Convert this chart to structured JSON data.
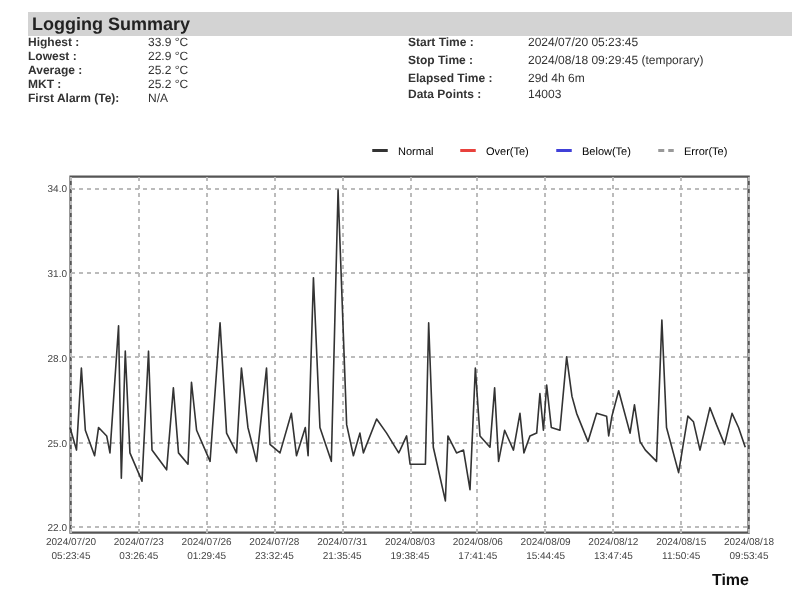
{
  "chart_data": {
    "type": "line",
    "title": "Logging Summary",
    "xlabel": "Time",
    "annotations": [
      "Highest :",
      "33.9 °C",
      "Lowest :",
      "22.9 °C",
      "Average :",
      "25.2 °C",
      "MKT :",
      "25.2 °C",
      "First Alarm (Te):",
      "N/A",
      "Start Time :",
      "2024/07/20 05:23:45",
      "Stop Time :",
      "2024/08/18 09:29:45   (temporary)",
      "Elapsed Time :",
      "29d 4h 6m",
      "Data Points :",
      "14003"
    ],
    "x": [
      "2024-07-20T05:23",
      "2024-07-20T12:06",
      "2024-07-20T17:09",
      "2024-07-20T21:13",
      "2024-07-21T06:49",
      "2024-07-21T10:54",
      "2024-07-21T19:18",
      "2024-07-21T22:40",
      "2024-07-22T07:33",
      "2024-07-22T10:25",
      "2024-07-22T14:30",
      "2024-07-22T19:18",
      "2024-07-23T07:47",
      "2024-07-23T14:30",
      "2024-07-23T18:06",
      "2024-07-24T09:13",
      "2024-07-24T16:11",
      "2024-07-24T21:28",
      "2024-07-25T07:18",
      "2024-07-25T10:54",
      "2024-07-25T16:11",
      "2024-07-26T06:06",
      "2024-07-26T16:25",
      "2024-07-26T23:09",
      "2024-07-27T09:28",
      "2024-07-27T14:30",
      "2024-07-27T21:13",
      "2024-07-28T06:06",
      "2024-07-28T16:25",
      "2024-07-28T20:01",
      "2024-07-29T06:21",
      "2024-07-29T18:06",
      "2024-07-29T23:23",
      "2024-07-30T08:30",
      "2024-07-30T11:23",
      "2024-07-30T16:54",
      "2024-07-30T23:37",
      "2024-07-31T11:23",
      "2024-07-31T18:21",
      "2024-08-01T03:13",
      "2024-08-01T10:11",
      "2024-08-01T16:54",
      "2024-08-01T20:30",
      "2024-08-02T10:11",
      "2024-08-02T20:30",
      "2024-08-03T08:59",
      "2024-08-03T10:25",
      "2024-08-03T17:09",
      "2024-08-03T20:45",
      "2024-08-04T12:35",
      "2024-08-04T15:57",
      "2024-08-04T20:45",
      "2024-08-05T09:13",
      "2024-08-05T11:52",
      "2024-08-05T20:45",
      "2024-08-06T03:57",
      "2024-08-06T10:40",
      "2024-08-06T16:11",
      "2024-08-06T20:59",
      "2024-08-07T07:18",
      "2024-08-07T12:06",
      "2024-08-07T16:11",
      "2024-08-07T22:25",
      "2024-08-08T07:33",
      "2024-08-08T14:16",
      "2024-08-08T18:21",
      "2024-08-09T00:35",
      "2024-08-09T07:33",
      "2024-08-09T10:54",
      "2024-08-09T14:30",
      "2024-08-09T17:52",
      "2024-08-09T22:40",
      "2024-08-10T07:33",
      "2024-08-10T14:30",
      "2024-08-10T20:01",
      "2024-08-11T00:49",
      "2024-08-11T12:35",
      "2024-08-11T21:28",
      "2024-08-12T07:47",
      "2024-08-12T09:57",
      "2024-08-12T13:18",
      "2024-08-12T20:16",
      "2024-08-13T08:01",
      "2024-08-13T12:35",
      "2024-08-13T18:21",
      "2024-08-13T23:52",
      "2024-08-14T11:23",
      "2024-08-14T16:54",
      "2024-08-14T21:42",
      "2024-08-15T10:11",
      "2024-08-15T19:47",
      "2024-08-16T01:33",
      "2024-08-16T08:16",
      "2024-08-16T18:35",
      "2024-08-17T01:18",
      "2024-08-17T09:42",
      "2024-08-17T17:23",
      "2024-08-18T00:06",
      "2024-08-18T07:04"
    ],
    "series": [
      {
        "name": "Normal",
        "color": "#333333",
        "line_style": "solid",
        "values": [
          25.5,
          24.7,
          27.6,
          25.4,
          24.5,
          25.5,
          25.2,
          24.6,
          29.1,
          23.7,
          28.2,
          24.6,
          23.6,
          28.2,
          24.7,
          24.0,
          26.9,
          24.6,
          24.2,
          27.1,
          25.4,
          24.3,
          29.2,
          25.3,
          24.6,
          27.6,
          25.5,
          24.3,
          27.6,
          24.9,
          24.6,
          26.0,
          24.5,
          25.5,
          24.5,
          30.8,
          25.5,
          24.3,
          33.9,
          25.6,
          24.5,
          25.3,
          24.6,
          25.8,
          25.3,
          24.6,
          24.7,
          25.2,
          24.2,
          24.2,
          29.2,
          24.8,
          22.9,
          25.2,
          24.6,
          24.7,
          23.3,
          27.6,
          25.2,
          24.8,
          26.9,
          24.3,
          25.4,
          24.7,
          26.0,
          24.6,
          25.2,
          25.3,
          26.7,
          25.4,
          27.0,
          25.5,
          25.4,
          28.0,
          26.6,
          26.0,
          25.0,
          26.0,
          25.9,
          25.2,
          25.9,
          26.8,
          25.3,
          26.3,
          25.0,
          24.7,
          24.3,
          29.3,
          25.5,
          23.9,
          25.9,
          25.7,
          24.7,
          26.2,
          25.6,
          24.9,
          26.0,
          25.5,
          24.8
        ]
      },
      {
        "name": "Over(Te)",
        "color": "#e8413c",
        "line_style": "solid",
        "values": [
          null,
          null,
          null,
          null,
          null,
          null,
          null,
          null,
          null,
          null,
          null,
          null,
          null,
          null,
          null,
          null,
          null,
          null,
          null,
          null,
          null,
          null,
          null,
          null,
          null,
          null,
          null,
          null,
          null,
          null,
          null,
          null,
          null,
          null,
          null,
          null,
          null,
          null,
          null,
          null,
          null,
          null,
          null,
          null,
          null,
          null,
          null,
          null,
          null,
          null,
          null,
          null,
          null,
          null,
          null,
          null,
          null,
          null,
          null,
          null,
          null,
          null,
          null,
          null,
          null,
          null,
          null,
          null,
          null,
          null,
          null,
          null,
          null,
          null,
          null,
          null,
          null,
          null,
          null,
          null,
          null,
          null,
          null,
          null,
          null,
          null,
          null,
          null,
          null,
          null,
          null,
          null,
          null,
          null,
          null,
          null,
          null,
          null,
          null
        ]
      },
      {
        "name": "Below(Te)",
        "color": "#4040d8",
        "line_style": "solid",
        "values": [
          null,
          null,
          null,
          null,
          null,
          null,
          null,
          null,
          null,
          null,
          null,
          null,
          null,
          null,
          null,
          null,
          null,
          null,
          null,
          null,
          null,
          null,
          null,
          null,
          null,
          null,
          null,
          null,
          null,
          null,
          null,
          null,
          null,
          null,
          null,
          null,
          null,
          null,
          null,
          null,
          null,
          null,
          null,
          null,
          null,
          null,
          null,
          null,
          null,
          null,
          null,
          null,
          null,
          null,
          null,
          null,
          null,
          null,
          null,
          null,
          null,
          null,
          null,
          null,
          null,
          null,
          null,
          null,
          null,
          null,
          null,
          null,
          null,
          null,
          null,
          null,
          null,
          null,
          null,
          null,
          null,
          null,
          null,
          null,
          null,
          null,
          null,
          null,
          null,
          null,
          null,
          null,
          null,
          null,
          null,
          null,
          null,
          null,
          null
        ]
      },
      {
        "name": "Error(Te)",
        "color": "#999999",
        "line_style": "dashed",
        "values": [
          null,
          null,
          null,
          null,
          null,
          null,
          null,
          null,
          null,
          null,
          null,
          null,
          null,
          null,
          null,
          null,
          null,
          null,
          null,
          null,
          null,
          null,
          null,
          null,
          null,
          null,
          null,
          null,
          null,
          null,
          null,
          null,
          null,
          null,
          null,
          null,
          null,
          null,
          null,
          null,
          null,
          null,
          null,
          null,
          null,
          null,
          null,
          null,
          null,
          null,
          null,
          null,
          null,
          null,
          null,
          null,
          null,
          null,
          null,
          null,
          null,
          null,
          null,
          null,
          null,
          null,
          null,
          null,
          null,
          null,
          null,
          null,
          null,
          null,
          null,
          null,
          null,
          null,
          null,
          null,
          null,
          null,
          null,
          null,
          null,
          null,
          null,
          null,
          null,
          null,
          null,
          null,
          null,
          null,
          null,
          null,
          null,
          null,
          null
        ]
      }
    ],
    "xlim": [
      "2024-07-20T05:23",
      "2024-08-18T09:53"
    ],
    "xticks": [
      {
        "value": "2024-07-20T05:23",
        "label": "2024/07/20 05:23:45"
      },
      {
        "value": "2024-07-23T03:26",
        "label": "2024/07/23 03:26:45"
      },
      {
        "value": "2024-07-26T01:29",
        "label": "2024/07/26 01:29:45"
      },
      {
        "value": "2024-07-28T23:32",
        "label": "2024/07/28 23:32:45"
      },
      {
        "value": "2024-07-31T21:35",
        "label": "2024/07/31 21:35:45"
      },
      {
        "value": "2024-08-03T19:38",
        "label": "2024/08/03 19:38:45"
      },
      {
        "value": "2024-08-06T17:41",
        "label": "2024/08/06 17:41:45"
      },
      {
        "value": "2024-08-09T15:44",
        "label": "2024/08/09 15:44:45"
      },
      {
        "value": "2024-08-12T13:47",
        "label": "2024/08/12 13:47:45"
      },
      {
        "value": "2024-08-15T11:50",
        "label": "2024/08/15 11:50:45"
      },
      {
        "value": "2024-08-18T09:53",
        "label": "2024/08/18 09:53:45"
      }
    ],
    "ylim": [
      21.8,
      34.4
    ],
    "yticks": [
      {
        "value": 22,
        "label": "22.0"
      },
      {
        "value": 25,
        "label": "25.0"
      },
      {
        "value": 28,
        "label": "28.0"
      },
      {
        "value": 31,
        "label": "31.0"
      },
      {
        "value": 34,
        "label": "34.0"
      }
    ],
    "grid": true,
    "legend": "top right"
  }
}
